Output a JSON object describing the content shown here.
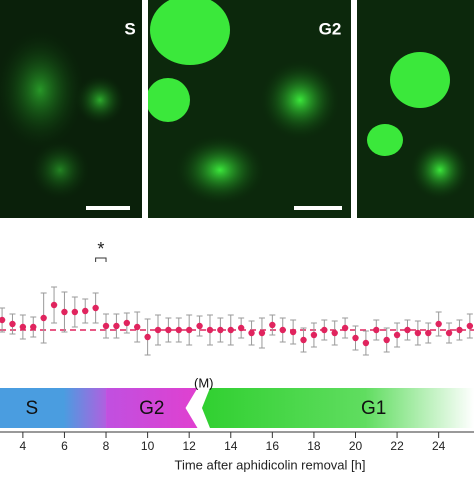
{
  "panels": [
    {
      "label": "S"
    },
    {
      "label": "G2"
    }
  ],
  "chart_data": {
    "type": "errorbar",
    "x": [
      3.0,
      3.5,
      4.0,
      4.5,
      5.0,
      5.5,
      6.0,
      6.5,
      7.0,
      7.5,
      8.0,
      8.5,
      9.0,
      9.5,
      10.0,
      10.5,
      11.0,
      11.5,
      12.0,
      12.5,
      13.0,
      13.5,
      14.0,
      14.5,
      15.0,
      15.5,
      16.0,
      16.5,
      17.0,
      17.5,
      18.0,
      18.5,
      19.0,
      19.5,
      20.0,
      20.5,
      21.0,
      21.5,
      22.0,
      22.5,
      23.0,
      23.5,
      24.0,
      24.5,
      25.0,
      25.5
    ],
    "values": [
      1.1,
      1.06,
      1.03,
      1.03,
      1.12,
      1.25,
      1.18,
      1.18,
      1.19,
      1.22,
      1.04,
      1.04,
      1.07,
      1.03,
      0.93,
      1.0,
      1.0,
      1.0,
      1.0,
      1.04,
      1.0,
      1.0,
      1.0,
      1.02,
      0.97,
      0.97,
      1.05,
      1.0,
      0.98,
      0.9,
      0.95,
      1.0,
      0.97,
      1.02,
      0.92,
      0.87,
      1.0,
      0.9,
      0.95,
      1.0,
      0.97,
      0.97,
      1.06,
      0.97,
      1.0,
      1.04
    ],
    "errors": [
      0.12,
      0.1,
      0.12,
      0.1,
      0.25,
      0.18,
      0.2,
      0.15,
      0.12,
      0.15,
      0.12,
      0.12,
      0.1,
      0.15,
      0.18,
      0.15,
      0.12,
      0.12,
      0.15,
      0.1,
      0.15,
      0.12,
      0.15,
      0.1,
      0.12,
      0.15,
      0.1,
      0.12,
      0.12,
      0.12,
      0.12,
      0.1,
      0.12,
      0.1,
      0.12,
      0.12,
      0.1,
      0.12,
      0.12,
      0.1,
      0.12,
      0.1,
      0.12,
      0.1,
      0.1,
      0.12
    ],
    "color": "#e0245e",
    "error_color": "#999999",
    "reference_line": 1.0,
    "significance": {
      "label": "*",
      "x": [
        7.5,
        8.0
      ]
    },
    "phases": [
      {
        "label": "S",
        "start": 2.9,
        "end": 8.0,
        "color": "#4a9de0"
      },
      {
        "label": "G2",
        "start": 8.0,
        "end": 12.4,
        "color": "#e040d0"
      },
      {
        "label": "G1",
        "start": 13.0,
        "end": 25.7,
        "color": "#3cd23c"
      }
    ],
    "m_label": "(M)",
    "xlabel": "Time after aphidicolin removal [h]",
    "xlim": [
      2.9,
      25.7
    ],
    "xticks": [
      4,
      6,
      8,
      10,
      12,
      14,
      16,
      18,
      20,
      22,
      24
    ],
    "ylim": [
      0.5,
      1.8
    ]
  }
}
